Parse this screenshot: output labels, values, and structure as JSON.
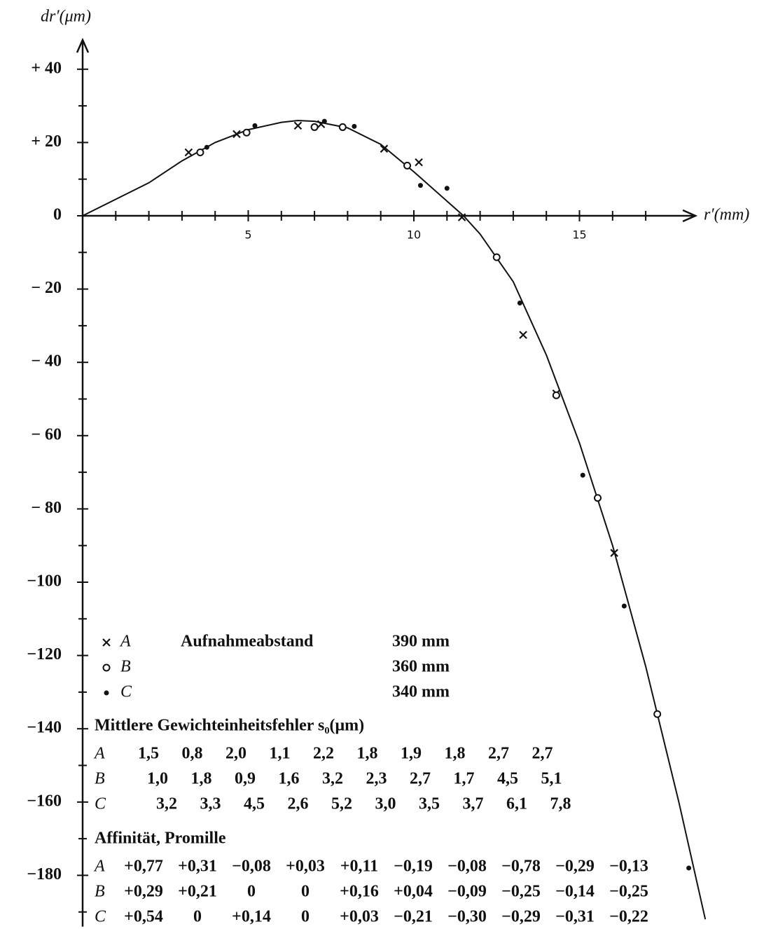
{
  "chart_data": {
    "type": "scatter",
    "x_label": "r′(mm)",
    "y_label": "dr′(μm)",
    "xlim": [
      0,
      18.5
    ],
    "ylim": [
      -194,
      48
    ],
    "xticks": [
      5,
      10,
      15
    ],
    "xminor_ticks": [
      1,
      2,
      3,
      4,
      6,
      7,
      8,
      9,
      11,
      12,
      13,
      14,
      16,
      17
    ],
    "yticks": [
      {
        "value": 40,
        "label": "+ 40"
      },
      {
        "value": 20,
        "label": "+ 20"
      },
      0,
      {
        "value": -20,
        "label": "− 20"
      },
      {
        "value": -40,
        "label": "− 40"
      },
      {
        "value": -60,
        "label": "− 60"
      },
      {
        "value": -80,
        "label": "− 80"
      },
      {
        "value": -100,
        "label": "−100"
      },
      {
        "value": -120,
        "label": "−120"
      },
      {
        "value": -140,
        "label": "−140"
      },
      {
        "value": -160,
        "label": "−160"
      },
      {
        "value": -180,
        "label": "−180"
      }
    ],
    "yminor_ticks": [
      30,
      10,
      -10,
      -30,
      -50,
      -70,
      -90,
      -110,
      -130,
      -150,
      -170,
      -190
    ],
    "color": "#111",
    "curve": {
      "x": [
        0,
        2,
        3,
        4,
        5,
        6,
        6.5,
        7,
        8,
        9,
        10,
        11,
        11.5,
        12,
        13,
        14,
        15,
        16,
        17,
        18,
        18.8
      ],
      "values": [
        0,
        9,
        15,
        20,
        23.5,
        25.5,
        26,
        25.8,
        24,
        19.5,
        12,
        4,
        0,
        -5,
        -18,
        -38,
        -62,
        -90,
        -123,
        -160,
        -192
      ]
    },
    "distance_label": "Aufnahmeabstand",
    "series": [
      {
        "name": "A",
        "marker": "cross",
        "distance": "390 mm",
        "x": [
          3.2,
          4.65,
          6.5,
          7.2,
          9.1,
          10.15,
          11.45,
          13.3,
          14.3,
          16.05
        ],
        "values": [
          17.3,
          22.3,
          24.6,
          25,
          18.3,
          14.6,
          -0.4,
          -32.5,
          -48.5,
          -92
        ]
      },
      {
        "name": "B",
        "marker": "circle",
        "distance": "360 mm",
        "x": [
          3.55,
          4.95,
          7.0,
          7.85,
          9.8,
          12.5,
          14.3,
          15.55,
          17.35
        ],
        "values": [
          17.3,
          22.7,
          24.2,
          24.2,
          13.7,
          -11.3,
          -49,
          -77,
          -136
        ]
      },
      {
        "name": "C",
        "marker": "dot",
        "distance": "340 mm",
        "x": [
          3.75,
          5.2,
          7.3,
          8.2,
          10.2,
          11.0,
          13.2,
          15.1,
          16.35,
          18.3
        ],
        "values": [
          18.7,
          24.6,
          25.8,
          24.4,
          8.3,
          7.5,
          -23.8,
          -70.8,
          -106.5,
          -178
        ]
      }
    ],
    "error_table": {
      "title": "Mittlere Gewichteinheitsfehler s₀(μm)",
      "rows": [
        {
          "name": "A",
          "values": [
            "1,5",
            "0,8",
            "2,0",
            "1,1",
            "2,2",
            "1,8",
            "1,9",
            "1,8",
            "2,7",
            "2,7"
          ]
        },
        {
          "name": "B",
          "values": [
            "1,0",
            "1,8",
            "0,9",
            "1,6",
            "3,2",
            "2,3",
            "2,7",
            "1,7",
            "4,5",
            "5,1"
          ]
        },
        {
          "name": "C",
          "values": [
            "3,2",
            "3,3",
            "4,5",
            "2,6",
            "5,2",
            "3,0",
            "3,5",
            "3,7",
            "6,1",
            "7,8"
          ]
        }
      ]
    },
    "affinity_table": {
      "title": "Affinität, Promille",
      "rows": [
        {
          "name": "A",
          "values": [
            "+0,77",
            "+0,31",
            "−0,08",
            "+0,03",
            "+0,11",
            "−0,19",
            "−0,08",
            "−0,78",
            "−0,29",
            "−0,13"
          ]
        },
        {
          "name": "B",
          "values": [
            "+0,29",
            "+0,21",
            "0",
            "0",
            "+0,16",
            "+0,04",
            "−0,09",
            "−0,25",
            "−0,14",
            "−0,25"
          ]
        },
        {
          "name": "C",
          "values": [
            "+0,54",
            "0",
            "+0,14",
            "0",
            "+0,03",
            "−0,21",
            "−0,30",
            "−0,29",
            "−0,31",
            "−0,22"
          ]
        }
      ]
    }
  }
}
